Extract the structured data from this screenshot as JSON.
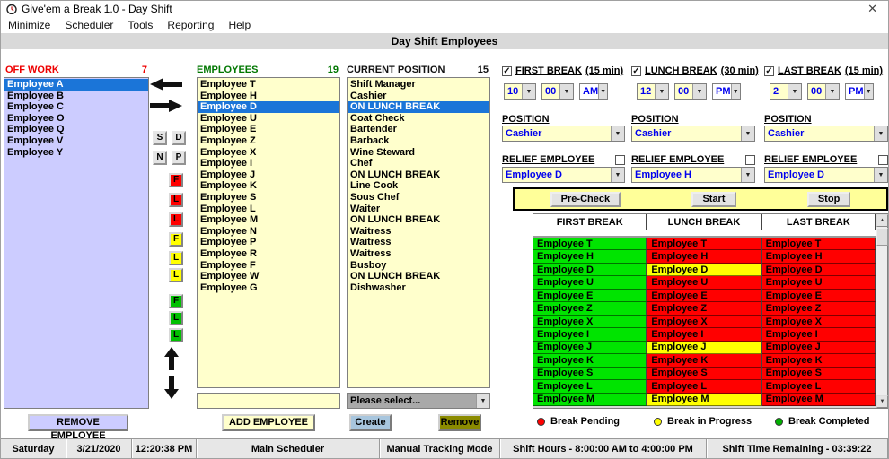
{
  "window": {
    "title": "Give'em a Break 1.0  - Day Shift",
    "close_label": "✕"
  },
  "menu": [
    "Minimize",
    "Scheduler",
    "Tools",
    "Reporting",
    "Help"
  ],
  "band_title": "Day Shift Employees",
  "off_work": {
    "label": "OFF WORK",
    "count": "7",
    "selected_index": 0,
    "items": [
      "Employee A",
      "Employee B",
      "Employee C",
      "Employee O",
      "Employee Q",
      "Employee V",
      "Employee Y"
    ]
  },
  "side": {
    "pair_buttons": [
      "S",
      "D",
      "N",
      "P"
    ],
    "flags": [
      {
        "label": "F",
        "color": "#FF0000"
      },
      {
        "label": "L",
        "color": "#FF0000"
      },
      {
        "label": "L",
        "color": "#FF0000"
      },
      {
        "label": "F",
        "color": "#FFFF00"
      },
      {
        "label": "L",
        "color": "#FFFF00"
      },
      {
        "label": "L",
        "color": "#FFFF00"
      },
      {
        "label": "F",
        "color": "#00C000"
      },
      {
        "label": "L",
        "color": "#00C000"
      },
      {
        "label": "L",
        "color": "#00C000"
      }
    ]
  },
  "employees": {
    "label": "EMPLOYEES",
    "count": "19",
    "selected_index": 2,
    "new_employee_value": "",
    "items": [
      "Employee T",
      "Employee H",
      "Employee D",
      "Employee U",
      "Employee E",
      "Employee Z",
      "Employee X",
      "Employee I",
      "Employee J",
      "Employee K",
      "Employee S",
      "Employee L",
      "Employee M",
      "Employee N",
      "Employee P",
      "Employee R",
      "Employee F",
      "Employee W",
      "Employee G"
    ]
  },
  "current_position": {
    "label": "CURRENT POSITION",
    "count": "15",
    "selected_index": 2,
    "select_placeholder": "Please select...",
    "items": [
      "Shift Manager",
      "Cashier",
      "ON LUNCH BREAK",
      "Coat Check",
      "Bartender",
      "Barback",
      "Wine Steward",
      "Chef",
      "ON LUNCH BREAK",
      "Line Cook",
      "Sous Chef",
      "Waiter",
      "ON LUNCH BREAK",
      "Waitress",
      "Waitress",
      "Waitress",
      "Busboy",
      "ON LUNCH BREAK",
      "Dishwasher"
    ]
  },
  "breaks": {
    "columns": [
      {
        "label": "FIRST BREAK",
        "duration": "(15 min)",
        "enabled": true,
        "hour": "10",
        "minute": "00",
        "ampm": "AM",
        "position_label": "POSITION",
        "position": "Cashier",
        "relief_label": "RELIEF EMPLOYEE",
        "relief_enabled": false,
        "relief": "Employee D"
      },
      {
        "label": "LUNCH BREAK",
        "duration": "(30 min)",
        "enabled": true,
        "hour": "12",
        "minute": "00",
        "ampm": "PM",
        "position_label": "POSITION",
        "position": "Cashier",
        "relief_label": "RELIEF EMPLOYEE",
        "relief_enabled": false,
        "relief": "Employee H"
      },
      {
        "label": "LAST BREAK",
        "duration": "(15 min)",
        "enabled": true,
        "hour": "2",
        "minute": "00",
        "ampm": "PM",
        "position_label": "POSITION",
        "position": "Cashier",
        "relief_label": "RELIEF EMPLOYEE",
        "relief_enabled": false,
        "relief": "Employee D"
      }
    ]
  },
  "actions": {
    "pre_check": "Pre-Check",
    "start": "Start",
    "stop": "Stop"
  },
  "break_table": {
    "columns": [
      "FIRST BREAK",
      "LUNCH BREAK",
      "LAST BREAK"
    ],
    "status_colors": {
      "pending": "#FF0000",
      "in_progress": "#FFFF00",
      "completed": "#00E400"
    },
    "rows": [
      {
        "name": "Employee T",
        "first": "completed",
        "lunch": "pending",
        "last": "pending"
      },
      {
        "name": "Employee H",
        "first": "completed",
        "lunch": "pending",
        "last": "pending"
      },
      {
        "name": "Employee D",
        "first": "completed",
        "lunch": "in_progress",
        "last": "pending"
      },
      {
        "name": "Employee U",
        "first": "completed",
        "lunch": "pending",
        "last": "pending"
      },
      {
        "name": "Employee E",
        "first": "completed",
        "lunch": "pending",
        "last": "pending"
      },
      {
        "name": "Employee Z",
        "first": "completed",
        "lunch": "pending",
        "last": "pending"
      },
      {
        "name": "Employee X",
        "first": "completed",
        "lunch": "pending",
        "last": "pending"
      },
      {
        "name": "Employee I",
        "first": "completed",
        "lunch": "pending",
        "last": "pending"
      },
      {
        "name": "Employee J",
        "first": "completed",
        "lunch": "in_progress",
        "last": "pending"
      },
      {
        "name": "Employee K",
        "first": "completed",
        "lunch": "pending",
        "last": "pending"
      },
      {
        "name": "Employee S",
        "first": "completed",
        "lunch": "pending",
        "last": "pending"
      },
      {
        "name": "Employee L",
        "first": "completed",
        "lunch": "pending",
        "last": "pending"
      },
      {
        "name": "Employee M",
        "first": "completed",
        "lunch": "in_progress",
        "last": "pending"
      }
    ]
  },
  "footer": {
    "remove_employee": "REMOVE EMPLOYEE",
    "add_employee": "ADD EMPLOYEE",
    "create": "Create",
    "remove": "Remove"
  },
  "legend": [
    {
      "label": "Break Pending",
      "color": "#FF0000"
    },
    {
      "label": "Break in Progress",
      "color": "#FFFF00"
    },
    {
      "label": "Break Completed",
      "color": "#00B000"
    }
  ],
  "status_bar": [
    "Saturday",
    "3/21/2020",
    "12:20:38 PM",
    "Main Scheduler",
    "Manual Tracking Mode",
    "Shift Hours -  8:00:00 AM to 4:00:00 PM",
    "Shift Time Remaining  -  03:39:22"
  ]
}
